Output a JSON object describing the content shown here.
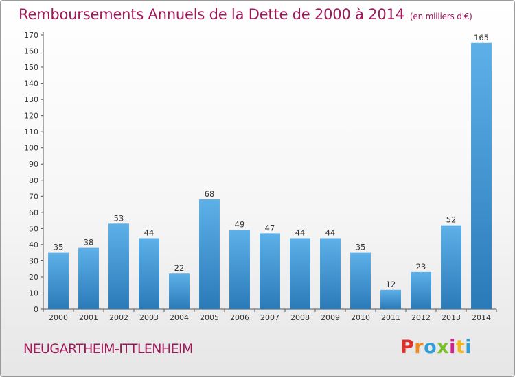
{
  "header": {
    "title": "Remboursements Annuels de la Dette de 2000 à 2014",
    "subtitle": "(en milliers d'€)"
  },
  "footer": {
    "commune": "NEUGARTHEIM-ITTLENHEIM",
    "logo": "Proxiti"
  },
  "colors": {
    "title": "#a0185a",
    "bar_top": "#5db0e8",
    "bar_bottom": "#2a7ab8"
  },
  "chart_data": {
    "type": "bar",
    "categories": [
      "2000",
      "2001",
      "2002",
      "2003",
      "2004",
      "2005",
      "2006",
      "2007",
      "2008",
      "2009",
      "2010",
      "2011",
      "2012",
      "2013",
      "2014"
    ],
    "values": [
      35,
      38,
      53,
      44,
      22,
      68,
      49,
      47,
      44,
      44,
      35,
      12,
      23,
      52,
      165
    ],
    "ylim": [
      0,
      170
    ],
    "yticks": [
      0,
      10,
      20,
      30,
      40,
      50,
      60,
      70,
      80,
      90,
      100,
      110,
      120,
      130,
      140,
      150,
      160,
      170
    ],
    "grid": false,
    "legend": "none"
  }
}
